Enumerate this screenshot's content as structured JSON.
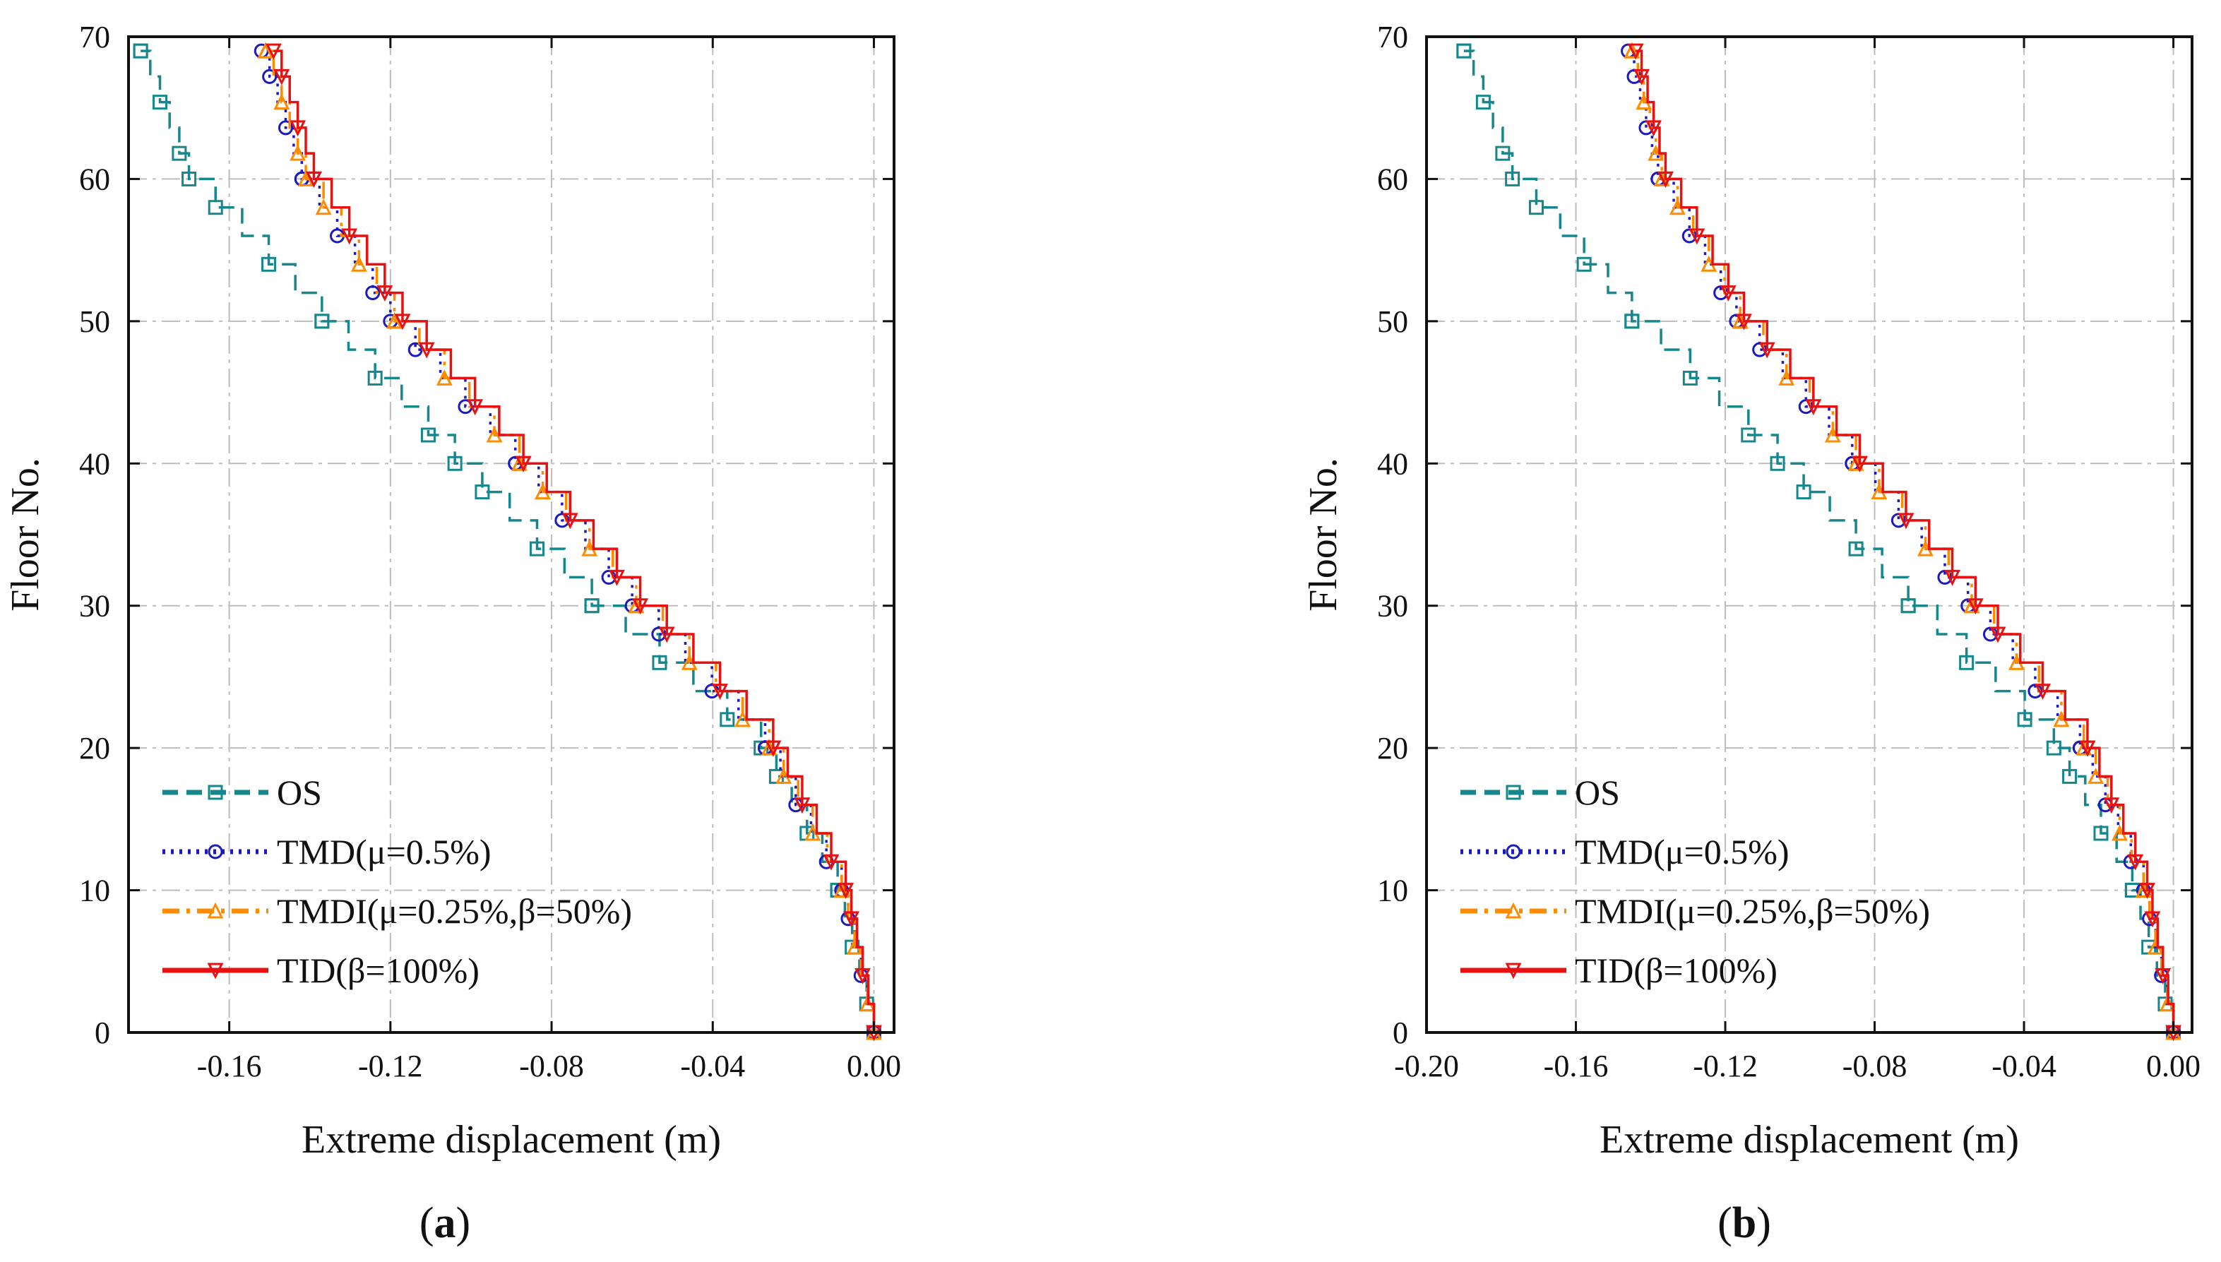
{
  "chart_data": [
    {
      "type": "line",
      "panel_label": "(a)",
      "panel_label_parts": {
        "open": "(",
        "letter": "a",
        "close": ")"
      },
      "xlabel": "Extreme displacement (m)",
      "ylabel": "Floor No.",
      "xlim": [
        -0.185,
        0.005
      ],
      "ylim": [
        0,
        70
      ],
      "xticks": [
        -0.16,
        -0.12,
        -0.08,
        -0.04,
        0.0
      ],
      "xtick_labels": [
        "-0.16",
        "-0.12",
        "-0.08",
        "-0.04",
        "0.00"
      ],
      "yticks": [
        0,
        10,
        20,
        30,
        40,
        50,
        60,
        70
      ],
      "ytick_labels": [
        "0",
        "10",
        "20",
        "30",
        "40",
        "50",
        "60",
        "70"
      ],
      "grid": true,
      "legend_position": "bottom-left",
      "floors": [
        0,
        10,
        20,
        30,
        40,
        50,
        60,
        69
      ],
      "series": [
        {
          "name": "OS",
          "color": "#16878c",
          "dash": "dashed",
          "marker": "square",
          "values": [
            0.0,
            -0.009,
            -0.028,
            -0.07,
            -0.104,
            -0.137,
            -0.17,
            -0.182
          ]
        },
        {
          "name": "TMD(μ=0.5%)",
          "color": "#1a1ac0",
          "dash": "dotted",
          "marker": "circle",
          "values": [
            0.0,
            -0.008,
            -0.027,
            -0.06,
            -0.089,
            -0.12,
            -0.142,
            -0.152
          ]
        },
        {
          "name": "TMDI(μ=0.25%,β=50%)",
          "color": "#ff8c00",
          "dash": "dashdot",
          "marker": "triangle-up",
          "values": [
            0.0,
            -0.008,
            -0.026,
            -0.059,
            -0.088,
            -0.119,
            -0.141,
            -0.151
          ]
        },
        {
          "name": "TID(β=100%)",
          "color": "#e81010",
          "dash": "solid",
          "marker": "triangle-down",
          "values": [
            0.0,
            -0.007,
            -0.025,
            -0.058,
            -0.087,
            -0.117,
            -0.139,
            -0.149
          ]
        }
      ]
    },
    {
      "type": "line",
      "panel_label": "(b)",
      "panel_label_parts": {
        "open": "(",
        "letter": "b",
        "close": ")"
      },
      "xlabel": "Extreme displacement (m)",
      "ylabel": "Floor No.",
      "xlim": [
        -0.2,
        0.005
      ],
      "ylim": [
        0,
        70
      ],
      "xticks": [
        -0.2,
        -0.16,
        -0.12,
        -0.08,
        -0.04,
        0.0
      ],
      "xtick_labels": [
        "-0.20",
        "-0.16",
        "-0.12",
        "-0.08",
        "-0.04",
        "0.00"
      ],
      "yticks": [
        0,
        10,
        20,
        30,
        40,
        50,
        60,
        70
      ],
      "ytick_labels": [
        "0",
        "10",
        "20",
        "30",
        "40",
        "50",
        "60",
        "70"
      ],
      "grid": true,
      "legend_position": "bottom-left",
      "floors": [
        0,
        10,
        20,
        30,
        40,
        50,
        60,
        69
      ],
      "series": [
        {
          "name": "OS",
          "color": "#16878c",
          "dash": "dashed",
          "marker": "square",
          "values": [
            0.0,
            -0.011,
            -0.032,
            -0.071,
            -0.106,
            -0.145,
            -0.177,
            -0.19
          ]
        },
        {
          "name": "TMD(μ=0.5%)",
          "color": "#1a1ac0",
          "dash": "dotted",
          "marker": "circle",
          "values": [
            0.0,
            -0.008,
            -0.025,
            -0.055,
            -0.086,
            -0.117,
            -0.138,
            -0.146
          ]
        },
        {
          "name": "TMDI(μ=0.25%,β=50%)",
          "color": "#ff8c00",
          "dash": "dashdot",
          "marker": "triangle-up",
          "values": [
            0.0,
            -0.008,
            -0.024,
            -0.054,
            -0.085,
            -0.116,
            -0.137,
            -0.145
          ]
        },
        {
          "name": "TID(β=100%)",
          "color": "#e81010",
          "dash": "solid",
          "marker": "triangle-down",
          "values": [
            0.0,
            -0.007,
            -0.023,
            -0.053,
            -0.084,
            -0.115,
            -0.136,
            -0.144
          ]
        }
      ]
    }
  ]
}
